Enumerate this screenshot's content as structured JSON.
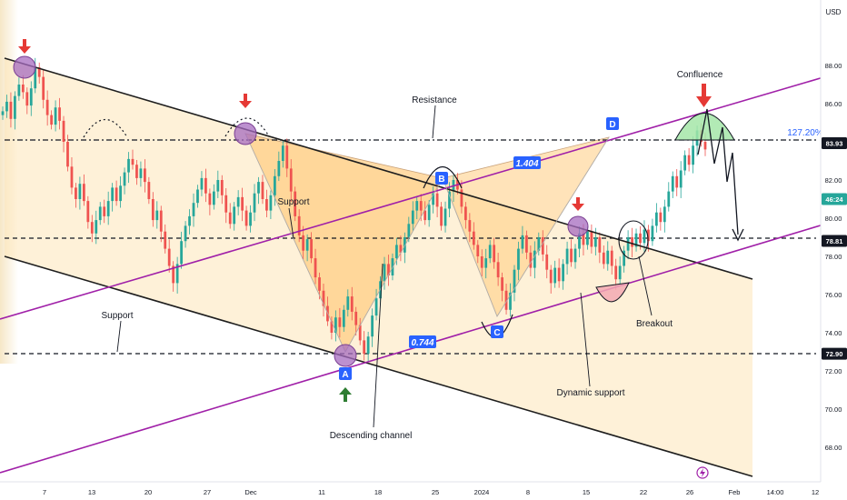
{
  "chart_data": {
    "type": "candlestick",
    "currency": "USD",
    "ylim": [
      66.8,
      89.6
    ],
    "x_ticks": [
      "7",
      "13",
      "20",
      "27",
      "Dec",
      "11",
      "18",
      "25",
      "2024",
      "8",
      "15",
      "22",
      "26",
      "Feb",
      "14:00",
      "12"
    ],
    "y_ticks": [
      "68.00",
      "70.00",
      "72.00",
      "74.00",
      "76.00",
      "78.00",
      "80.00",
      "82.00",
      "86.00",
      "88.00"
    ],
    "price_tags": [
      {
        "label": "83.93",
        "value": 83.93,
        "color": "#131722"
      },
      {
        "label": "46:24",
        "value": 81.0,
        "color": "#26a69a"
      },
      {
        "label": "78.81",
        "value": 78.81,
        "color": "#131722"
      },
      {
        "label": "72.90",
        "value": 72.9,
        "color": "#131722"
      }
    ],
    "fib_label": "127.20%",
    "levels": [
      83.93,
      78.81,
      72.9
    ],
    "pattern_labels": [
      "A",
      "B",
      "C",
      "D"
    ],
    "ratios": [
      "1.404",
      "0.744"
    ],
    "annotations": [
      "Resistance",
      "Support",
      "Support",
      "Descending channel",
      "Dynamic support",
      "Breakout",
      "Confluence"
    ],
    "colors": {
      "up": "#26a69a",
      "down": "#ef5350",
      "channel": "#1e1e1e",
      "trendline": "#a020a8",
      "pattern": "#ffcc80"
    },
    "candles_close": [
      85.6,
      86.1,
      85.2,
      86.4,
      87.0,
      86.6,
      85.9,
      86.8,
      87.9,
      87.4,
      86.2,
      85.4,
      84.9,
      85.8,
      85.1,
      84.0,
      82.7,
      81.6,
      81.0,
      81.8,
      80.9,
      79.8,
      79.2,
      79.9,
      80.6,
      80.1,
      80.9,
      81.6,
      80.9,
      81.7,
      82.4,
      83.1,
      82.8,
      82.1,
      82.6,
      81.9,
      81.0,
      79.9,
      80.4,
      79.3,
      78.4,
      77.5,
      76.6,
      77.6,
      78.8,
      79.6,
      80.1,
      80.8,
      81.5,
      82.1,
      81.3,
      80.7,
      81.4,
      82.0,
      81.2,
      80.3,
      79.7,
      80.6,
      81.1,
      80.4,
      79.6,
      80.3,
      81.3,
      81.9,
      81.0,
      80.4,
      81.2,
      82.2,
      83.0,
      83.8,
      82.6,
      81.4,
      80.1,
      79.1,
      78.3,
      78.9,
      77.9,
      76.9,
      76.2,
      75.4,
      74.6,
      74.0,
      74.8,
      74.3,
      75.2,
      75.9,
      75.1,
      74.4,
      73.6,
      72.9,
      73.8,
      74.9,
      75.8,
      76.7,
      77.6,
      77.0,
      77.9,
      78.6,
      78.2,
      79.0,
      79.7,
      80.4,
      80.9,
      80.4,
      79.9,
      80.7,
      81.3,
      80.6,
      79.6,
      80.5,
      81.4,
      82.0,
      81.5,
      80.6,
      79.9,
      79.3,
      78.6,
      78.0,
      77.4,
      77.9,
      78.6,
      77.7,
      76.9,
      76.2,
      75.2,
      76.1,
      77.3,
      78.4,
      79.1,
      78.2,
      77.4,
      78.3,
      79.0,
      78.1,
      77.3,
      76.6,
      77.4,
      76.7,
      77.6,
      78.4,
      77.7,
      78.4,
      79.2,
      78.6,
      79.3,
      78.5,
      79.0,
      78.2,
      77.6,
      78.3,
      77.5,
      76.8,
      77.5,
      78.3,
      79.0,
      78.5,
      79.2,
      78.7,
      79.4,
      78.8,
      79.6,
      80.3,
      79.8,
      80.6,
      81.4,
      82.2,
      81.6,
      82.5,
      83.3,
      82.8,
      83.8,
      84.6,
      84.0,
      83.6
    ]
  }
}
